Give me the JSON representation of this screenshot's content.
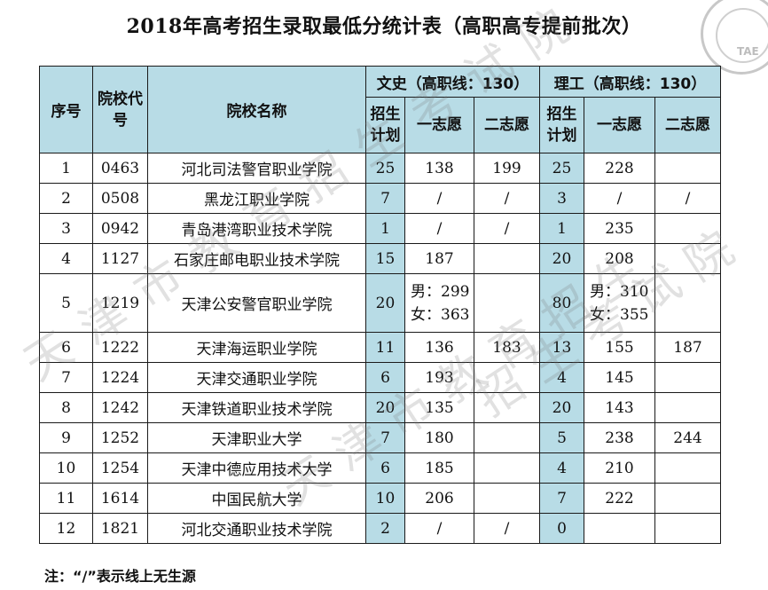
{
  "title": "2018年高考招生录取最低分统计表（高职高专提前批次）",
  "logo": {
    "text": "TAE"
  },
  "watermarks": [
    "天津市教育招生考试院",
    "天津市教育招生",
    "招生考试院"
  ],
  "headers": {
    "seq": "序号",
    "code": "院校代号",
    "name": "院校名称",
    "wenshi": "文史（高职线：130）",
    "ligong": "理工（高职线：130）",
    "plan": "招生计划",
    "first": "一志愿",
    "second": "二志愿"
  },
  "rows": [
    {
      "seq": "1",
      "code": "0463",
      "name": "河北司法警官职业学院",
      "w_plan": "25",
      "w_first": "138",
      "w_second": "199",
      "l_plan": "25",
      "l_first": "228",
      "l_second": ""
    },
    {
      "seq": "2",
      "code": "0508",
      "name": "黑龙江职业学院",
      "w_plan": "7",
      "w_first": "/",
      "w_second": "/",
      "l_plan": "3",
      "l_first": "/",
      "l_second": "/"
    },
    {
      "seq": "3",
      "code": "0942",
      "name": "青岛港湾职业技术学院",
      "w_plan": "1",
      "w_first": "/",
      "w_second": "/",
      "l_plan": "1",
      "l_first": "235",
      "l_second": ""
    },
    {
      "seq": "4",
      "code": "1127",
      "name": "石家庄邮电职业技术学院",
      "w_plan": "15",
      "w_first": "187",
      "w_second": "",
      "l_plan": "20",
      "l_first": "208",
      "l_second": ""
    },
    {
      "seq": "5",
      "code": "1219",
      "name": "天津公安警官职业学院",
      "w_plan": "20",
      "w_first_male": "男：299",
      "w_first_female": "女：363",
      "w_second": "",
      "l_plan": "80",
      "l_first_male": "男：310",
      "l_first_female": "女：355",
      "l_second": ""
    },
    {
      "seq": "6",
      "code": "1222",
      "name": "天津海运职业学院",
      "w_plan": "11",
      "w_first": "136",
      "w_second": "183",
      "l_plan": "13",
      "l_first": "155",
      "l_second": "187"
    },
    {
      "seq": "7",
      "code": "1224",
      "name": "天津交通职业学院",
      "w_plan": "6",
      "w_first": "193",
      "w_second": "",
      "l_plan": "4",
      "l_first": "145",
      "l_second": ""
    },
    {
      "seq": "8",
      "code": "1242",
      "name": "天津铁道职业技术学院",
      "w_plan": "20",
      "w_first": "135",
      "w_second": "",
      "l_plan": "20",
      "l_first": "143",
      "l_second": ""
    },
    {
      "seq": "9",
      "code": "1252",
      "name": "天津职业大学",
      "w_plan": "7",
      "w_first": "180",
      "w_second": "",
      "l_plan": "5",
      "l_first": "238",
      "l_second": "244"
    },
    {
      "seq": "10",
      "code": "1254",
      "name": "天津中德应用技术大学",
      "w_plan": "6",
      "w_first": "185",
      "w_second": "",
      "l_plan": "4",
      "l_first": "210",
      "l_second": ""
    },
    {
      "seq": "11",
      "code": "1614",
      "name": "中国民航大学",
      "w_plan": "10",
      "w_first": "206",
      "w_second": "",
      "l_plan": "7",
      "l_first": "222",
      "l_second": ""
    },
    {
      "seq": "12",
      "code": "1821",
      "name": "河北交通职业技术学院",
      "w_plan": "2",
      "w_first": "/",
      "w_second": "/",
      "l_plan": "0",
      "l_first": "",
      "l_second": ""
    }
  ],
  "note": "注：“/”表示线上无生源"
}
